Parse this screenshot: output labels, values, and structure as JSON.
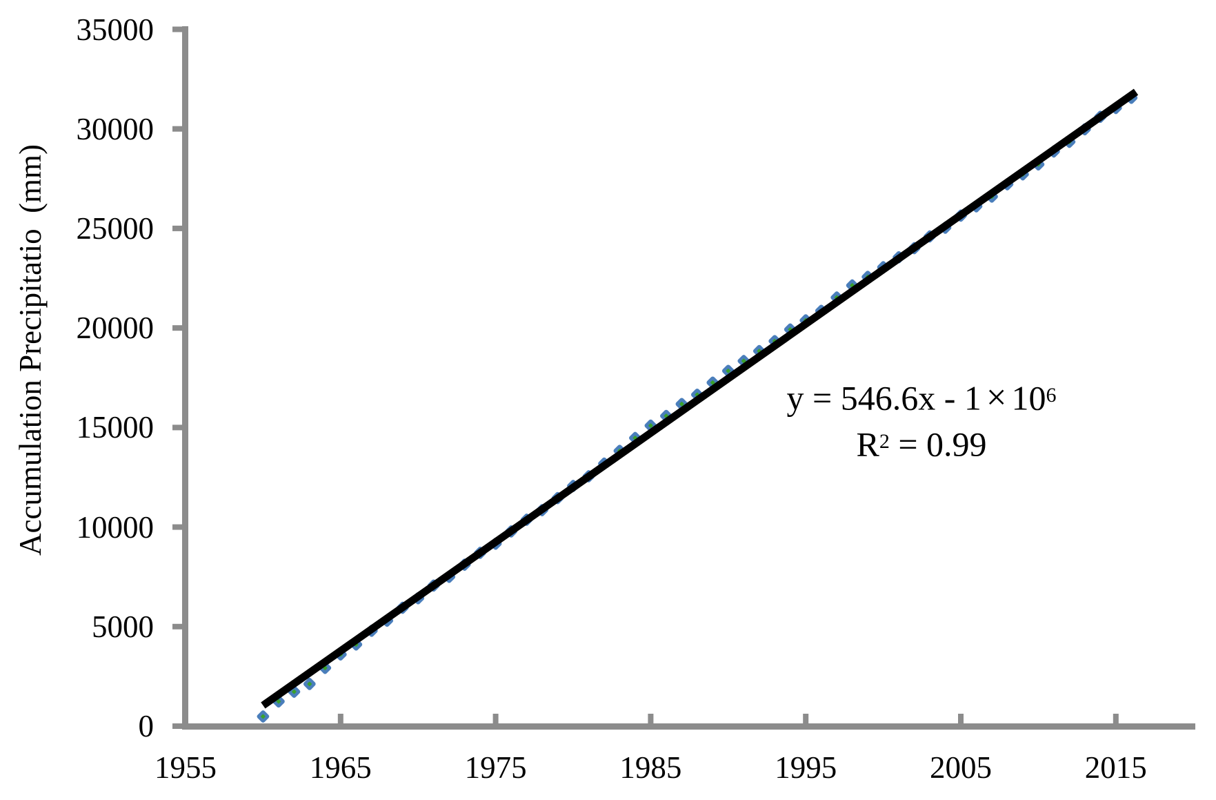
{
  "figure": {
    "y_axis_title": "Accumulation Precipitatio  (mm)",
    "annotation": {
      "eq_pre": "y = 546.6x - 1",
      "eq_times": "×",
      "eq_base": "10",
      "eq_exp": "6",
      "r2_base": "R",
      "r2_sup": "2",
      "r2_rest": " = 0.99"
    }
  },
  "colors": {
    "marker_fill": "#4a7ebb",
    "marker_center": "#3aa12c",
    "trendline": "#000000",
    "axis": "#8c8c8c",
    "text": "#000000"
  },
  "chart_data": {
    "type": "scatter",
    "title": "",
    "xlabel": "",
    "ylabel": "Accumulation Precipitatio  (mm)",
    "xlim": [
      1955,
      2020
    ],
    "ylim": [
      0,
      35000
    ],
    "grid": false,
    "legend": false,
    "x_ticks": [
      1955,
      1965,
      1975,
      1985,
      1995,
      2005,
      2015
    ],
    "y_ticks": [
      0,
      5000,
      10000,
      15000,
      20000,
      25000,
      30000,
      35000
    ],
    "series": [
      {
        "name": "Accumulation Precipitation",
        "marker": "diamond",
        "x": [
          1960,
          1961,
          1962,
          1963,
          1964,
          1965,
          1966,
          1967,
          1968,
          1969,
          1970,
          1971,
          1972,
          1973,
          1974,
          1975,
          1976,
          1977,
          1978,
          1979,
          1980,
          1981,
          1982,
          1983,
          1984,
          1985,
          1986,
          1987,
          1988,
          1989,
          1990,
          1991,
          1992,
          1993,
          1994,
          1995,
          1996,
          1997,
          1998,
          1999,
          2000,
          2001,
          2002,
          2003,
          2004,
          2005,
          2006,
          2007,
          2008,
          2009,
          2010,
          2011,
          2012,
          2013,
          2014,
          2015,
          2016
        ],
        "y": [
          484,
          1242,
          1730,
          2118,
          2926,
          3604,
          4102,
          4790,
          5298,
          5946,
          6424,
          7062,
          7500,
          8108,
          8706,
          9164,
          9782,
          10370,
          10848,
          11456,
          12064,
          12552,
          13190,
          13828,
          14476,
          15094,
          15582,
          16180,
          16648,
          17256,
          17844,
          18342,
          18840,
          19338,
          19926,
          20384,
          20862,
          21530,
          22138,
          22566,
          23054,
          23552,
          24010,
          24598,
          25036,
          25644,
          26112,
          26600,
          27218,
          27716,
          28214,
          28862,
          29350,
          29978,
          30606,
          31049,
          31562
        ]
      }
    ],
    "trendline": {
      "equation": "y = 546.6x - 1×10⁶",
      "r_squared": "R² = 0.99",
      "x_start": 1960,
      "y_start": 1040,
      "x_end": 2016.3,
      "y_end": 31860
    }
  }
}
